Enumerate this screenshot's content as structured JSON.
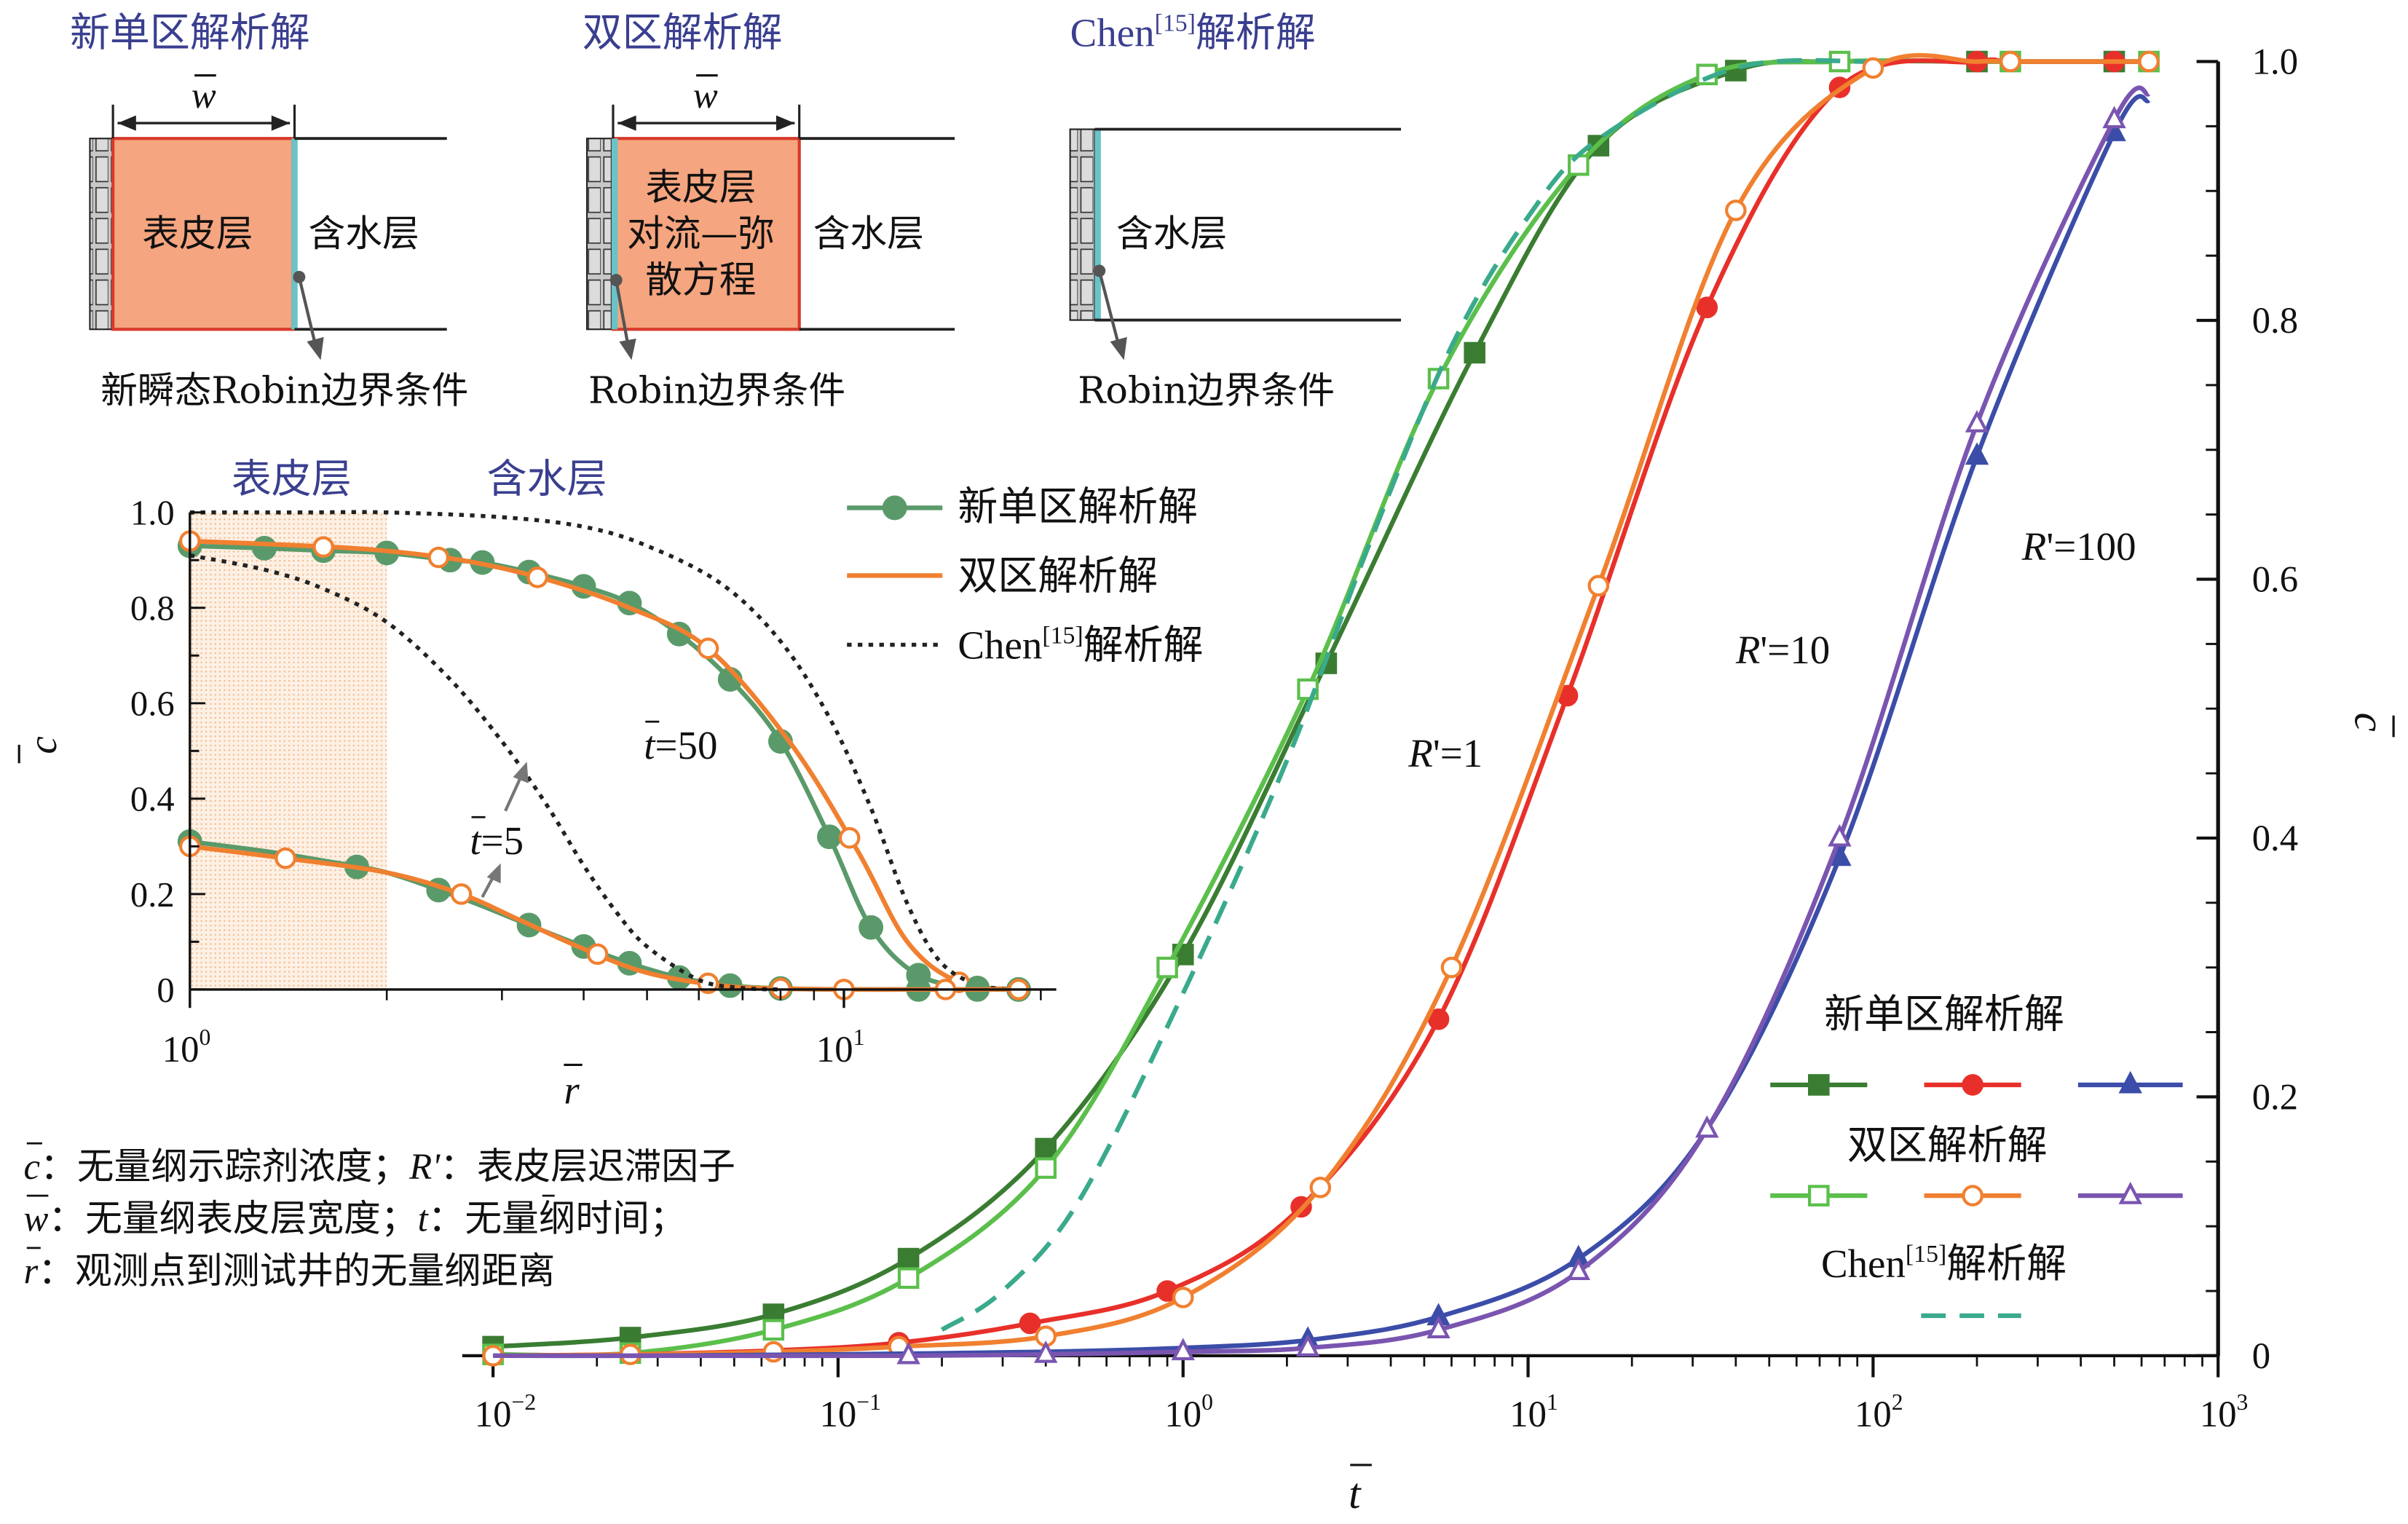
{
  "schematics": {
    "single_zone": {
      "title": "新单区解析解",
      "w_label": "w",
      "skin_label": "表皮层",
      "aquifer_label": "含水层",
      "boundary_label": "新瞬态Robin边界条件"
    },
    "two_zone": {
      "title": "双区解析解",
      "w_label": "w",
      "skin_line1": "表皮层",
      "skin_line2": "对流—弥",
      "skin_line3": "散方程",
      "aquifer_label": "含水层",
      "boundary_label": "Robin边界条件"
    },
    "chen": {
      "title_prefix": "Chen",
      "title_ref": "[15]",
      "title_suffix": "解析解",
      "aquifer_label": "含水层",
      "boundary_label": "Robin边界条件"
    }
  },
  "definitions": {
    "line1_sym_c": "c",
    "line1_a": "：无量纲示踪剂浓度；",
    "line1_sym_r": "R'",
    "line1_b": "：表皮层迟滞因子",
    "line2_sym_w": "w",
    "line2_a": "：无量纲表皮层宽度；",
    "line2_sym_t": "t",
    "line2_b": "：无量纲时间；",
    "line3_sym_r": "r",
    "line3_a": "：观测点到测试井的无量纲距离"
  },
  "colors": {
    "single_R1": "#3a7d32",
    "two_R1": "#5bbf4b",
    "chen_R1": "#3aaa8c",
    "single_R10": "#e8302a",
    "two_R10": "#f08030",
    "single_R100": "#3b4da8",
    "two_R100": "#7a55b0",
    "inset_single": "#5a9a6a",
    "inset_two": "#f08030",
    "inset_chen": "#222222",
    "skin_fill": "#f5a57f",
    "skin_border": "#d83a2a",
    "interface": "#6ac3c8",
    "title_blue": "#3a3f8f"
  },
  "chart_data": [
    {
      "id": "main",
      "type": "line",
      "xlabel": "t",
      "ylabel": "c",
      "xscale": "log",
      "xlim": [
        0.01,
        1000
      ],
      "ylim": [
        0,
        1.0
      ],
      "xticks": [
        {
          "base": "10",
          "exp": "−2"
        },
        {
          "base": "10",
          "exp": "−1"
        },
        {
          "base": "10",
          "exp": "0"
        },
        {
          "base": "10",
          "exp": "1"
        },
        {
          "base": "10",
          "exp": "2"
        },
        {
          "base": "10",
          "exp": "3"
        }
      ],
      "yticks": [
        "0",
        "0.2",
        "0.4",
        "0.6",
        "0.8",
        "1.0"
      ],
      "yaxis_side": "right",
      "curve_labels": [
        {
          "prefix": "R",
          "suffix": "'=1",
          "x": 4.5,
          "y": 0.455
        },
        {
          "prefix": "R",
          "suffix": "'=10",
          "x": 40,
          "y": 0.535
        },
        {
          "prefix": "R",
          "suffix": "'=100",
          "x": 270,
          "y": 0.615
        }
      ],
      "legend": {
        "position": "bottom-right",
        "single_title": "新单区解析解",
        "two_title": "双区解析解",
        "chen_prefix": "Chen",
        "chen_ref": "[15]",
        "chen_suffix": "解析解"
      },
      "series": [
        {
          "name": "新单区解析解",
          "group": "R'=1",
          "marker": "filled-square",
          "color_key": "single_R1",
          "x": [
            0.01,
            0.025,
            0.065,
            0.16,
            0.4,
            1.0,
            2.6,
            7.0,
            16,
            40,
            80,
            200,
            250,
            500,
            630
          ],
          "y": [
            0.007,
            0.014,
            0.032,
            0.075,
            0.16,
            0.31,
            0.535,
            0.775,
            0.935,
            0.993,
            1.0,
            1.0,
            1.0,
            1.0,
            1.0
          ],
          "markers_at": [
            0.01,
            0.025,
            0.065,
            0.16,
            0.4,
            1.0,
            2.6,
            7.0,
            16,
            40,
            200,
            500
          ]
        },
        {
          "name": "双区解析解",
          "group": "R'=1",
          "marker": "open-square",
          "color_key": "two_R1",
          "x": [
            0.01,
            0.025,
            0.065,
            0.16,
            0.4,
            0.9,
            2.3,
            5.5,
            14,
            33,
            80,
            200,
            250,
            500,
            630
          ],
          "y": [
            0.001,
            0.002,
            0.02,
            0.06,
            0.145,
            0.3,
            0.515,
            0.755,
            0.92,
            0.99,
            1.0,
            1.0,
            1.0,
            1.0,
            1.0
          ],
          "markers_at": [
            0.01,
            0.025,
            0.065,
            0.16,
            0.4,
            0.9,
            2.3,
            5.5,
            14,
            33,
            80,
            250,
            630
          ]
        },
        {
          "name": "Chen[15]解析解",
          "group": "R'=1",
          "marker": "none",
          "dashed": true,
          "color_key": "chen_R1",
          "x": [
            0.2,
            0.3,
            0.5,
            1.0,
            2.0,
            3.5,
            6,
            10,
            16,
            40,
            100
          ],
          "y": [
            0.02,
            0.05,
            0.12,
            0.28,
            0.46,
            0.63,
            0.78,
            0.88,
            0.94,
            0.995,
            1.0
          ]
        },
        {
          "name": "新单区解析解",
          "group": "R'=10",
          "marker": "filled-circle",
          "color_key": "single_R10",
          "x": [
            0.01,
            0.025,
            0.065,
            0.15,
            0.36,
            0.9,
            2.2,
            5.5,
            13,
            33,
            80,
            200,
            250,
            500,
            630
          ],
          "y": [
            0.0,
            0.001,
            0.004,
            0.01,
            0.025,
            0.05,
            0.115,
            0.26,
            0.51,
            0.81,
            0.98,
            1.0,
            1.0,
            1.0,
            1.0
          ],
          "markers_at": [
            0.15,
            0.36,
            0.9,
            2.2,
            5.5,
            13,
            33,
            80,
            200,
            500
          ]
        },
        {
          "name": "双区解析解",
          "group": "R'=10",
          "marker": "open-circle",
          "color_key": "two_R10",
          "x": [
            0.01,
            0.025,
            0.065,
            0.15,
            0.4,
            1.0,
            2.5,
            6.0,
            16,
            40,
            100,
            200,
            250,
            500,
            630
          ],
          "y": [
            0.0,
            0.001,
            0.003,
            0.007,
            0.015,
            0.045,
            0.13,
            0.3,
            0.595,
            0.885,
            0.995,
            1.0,
            1.0,
            1.0,
            1.0
          ],
          "markers_at": [
            0.01,
            0.025,
            0.065,
            0.15,
            0.4,
            1.0,
            2.5,
            6.0,
            16,
            40,
            100,
            250,
            630
          ]
        },
        {
          "name": "新单区解析解",
          "group": "R'=100",
          "marker": "filled-triangle",
          "color_key": "single_R100",
          "x": [
            0.01,
            0.03,
            0.1,
            0.4,
            1.0,
            2.3,
            5.5,
            14,
            33,
            80,
            200,
            500,
            630
          ],
          "y": [
            0.0,
            0.0,
            0.001,
            0.003,
            0.006,
            0.012,
            0.03,
            0.075,
            0.175,
            0.385,
            0.695,
            0.945,
            0.97
          ],
          "markers_at": [
            2.3,
            5.5,
            14,
            80,
            200,
            500
          ]
        },
        {
          "name": "双区解析解",
          "group": "R'=100",
          "marker": "open-triangle",
          "color_key": "two_R100",
          "x": [
            0.01,
            0.03,
            0.16,
            0.4,
            1.0,
            2.3,
            5.5,
            14,
            33,
            80,
            200,
            500,
            630
          ],
          "y": [
            0.0,
            0.0,
            0.0,
            0.001,
            0.003,
            0.006,
            0.02,
            0.065,
            0.175,
            0.4,
            0.72,
            0.955,
            0.975
          ],
          "markers_at": [
            0.16,
            0.4,
            1.0,
            2.3,
            5.5,
            14,
            33,
            80,
            200,
            500
          ]
        }
      ]
    },
    {
      "id": "inset",
      "type": "line",
      "xlabel": "r",
      "ylabel": "c",
      "xscale": "log",
      "xlim": [
        1,
        20
      ],
      "ylim": [
        0,
        1.0
      ],
      "xticks": [
        {
          "base": "10",
          "exp": "0"
        },
        {
          "base": "10",
          "exp": "1"
        }
      ],
      "yticks": [
        "0",
        "0.2",
        "0.4",
        "0.6",
        "0.8",
        "1.0"
      ],
      "shaded_region": {
        "x_from": 1,
        "x_to": 2
      },
      "region_labels": {
        "skin": "表皮层",
        "aquifer": "含水层"
      },
      "annotations": [
        {
          "prefix": "t",
          "suffix": "=50"
        },
        {
          "prefix": "t",
          "suffix": "=5"
        }
      ],
      "legend": {
        "position": "top-right",
        "single": "新单区解析解",
        "two": "双区解析解",
        "chen_prefix": "Chen",
        "chen_ref": "[15]",
        "chen_suffix": "解析解"
      },
      "series": [
        {
          "name": "新单区解析解",
          "group": "t=50",
          "marker": "filled-circle",
          "color_key": "inset_single",
          "x": [
            1.0,
            1.3,
            1.6,
            2.0,
            2.5,
            2.8,
            3.3,
            4.0,
            4.7,
            5.6,
            6.7,
            8.0,
            9.5,
            11,
            13,
            16,
            18.5
          ],
          "y": [
            0.93,
            0.925,
            0.92,
            0.915,
            0.9,
            0.895,
            0.875,
            0.845,
            0.81,
            0.745,
            0.65,
            0.52,
            0.32,
            0.13,
            0.03,
            0.003,
            0.0
          ],
          "markers_at": [
            1.0,
            1.3,
            1.6,
            2.0,
            2.5,
            2.8,
            3.3,
            4.0,
            4.7,
            5.6,
            6.7,
            8.0,
            9.5,
            11,
            13,
            16,
            18.5
          ]
        },
        {
          "name": "双区解析解",
          "group": "t=50",
          "marker": "open-circle",
          "color_key": "inset_two",
          "x": [
            1.0,
            1.4,
            1.9,
            2.6,
            3.5,
            4.7,
            6.2,
            8.3,
            10.5,
            12.5,
            15,
            18.5
          ],
          "y": [
            0.94,
            0.932,
            0.922,
            0.9,
            0.86,
            0.8,
            0.715,
            0.515,
            0.29,
            0.1,
            0.015,
            0.0
          ],
          "markers_at": [
            1.0,
            1.6,
            2.4,
            3.4,
            6.2,
            10.2,
            15,
            18.5
          ]
        },
        {
          "name": "Chen[15]解析解",
          "group": "t=50",
          "marker": "none",
          "dotted": true,
          "color_key": "inset_chen",
          "x": [
            1.0,
            1.5,
            2.0,
            3.0,
            4.0,
            5.0,
            6.5,
            8.0,
            9.5,
            11,
            12.5,
            14,
            16,
            18.5
          ],
          "y": [
            1.0,
            1.0,
            1.0,
            0.99,
            0.97,
            0.93,
            0.85,
            0.73,
            0.57,
            0.38,
            0.18,
            0.06,
            0.01,
            0.0
          ]
        },
        {
          "name": "新单区解析解",
          "group": "t=5",
          "marker": "filled-circle",
          "color_key": "inset_single",
          "x": [
            1.0,
            1.3,
            1.6,
            2.0,
            2.5,
            2.8,
            3.3,
            4.0,
            4.7,
            5.6,
            6.7,
            8.0,
            10,
            13,
            16,
            18.5
          ],
          "y": [
            0.31,
            0.29,
            0.27,
            0.245,
            0.2,
            0.175,
            0.135,
            0.09,
            0.055,
            0.025,
            0.008,
            0.002,
            0.0,
            0.0,
            0.0,
            0.0
          ],
          "markers_at": [
            1.0,
            1.8,
            2.4,
            3.3,
            4.0,
            4.7,
            5.6,
            6.7,
            8.0,
            13,
            16,
            18.5
          ]
        },
        {
          "name": "双区解析解",
          "group": "t=5",
          "marker": "open-circle",
          "color_key": "inset_two",
          "x": [
            1.0,
            1.4,
            2.0,
            2.6,
            3.2,
            4.0,
            5.0,
            6.5,
            8.0,
            10,
            13,
            16,
            18.5
          ],
          "y": [
            0.3,
            0.275,
            0.245,
            0.2,
            0.145,
            0.085,
            0.035,
            0.008,
            0.002,
            0.0,
            0.0,
            0.0,
            0.0
          ],
          "markers_at": [
            1.0,
            1.4,
            2.6,
            4.2,
            6.2,
            8.0,
            10,
            14.3,
            18.5
          ]
        },
        {
          "name": "Chen[15]解析解",
          "group": "t=5",
          "marker": "none",
          "dotted": true,
          "color_key": "inset_chen",
          "x": [
            1.0,
            1.3,
            1.6,
            2.0,
            2.5,
            3.0,
            3.5,
            4.0,
            4.5,
            5.0,
            6.0,
            7.0,
            8.0
          ],
          "y": [
            0.91,
            0.88,
            0.84,
            0.77,
            0.65,
            0.52,
            0.39,
            0.26,
            0.16,
            0.09,
            0.02,
            0.003,
            0.0
          ]
        }
      ]
    }
  ]
}
